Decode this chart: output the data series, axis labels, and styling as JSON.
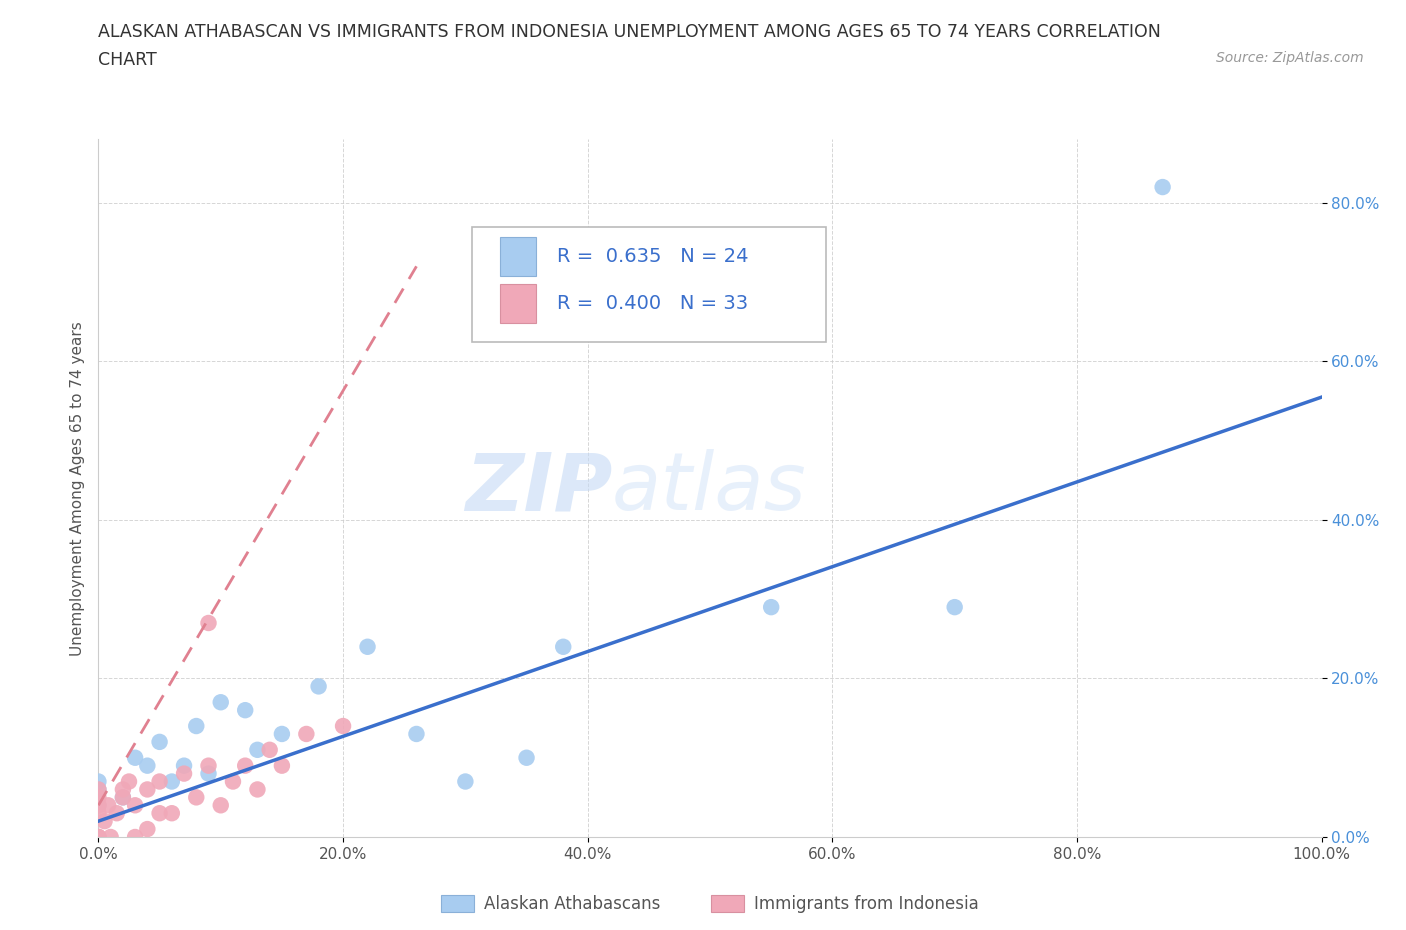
{
  "title_line1": "ALASKAN ATHABASCAN VS IMMIGRANTS FROM INDONESIA UNEMPLOYMENT AMONG AGES 65 TO 74 YEARS CORRELATION",
  "title_line2": "CHART",
  "source_text": "Source: ZipAtlas.com",
  "ylabel": "Unemployment Among Ages 65 to 74 years",
  "xlim": [
    0.0,
    1.0
  ],
  "ylim": [
    0.0,
    0.88
  ],
  "x_ticks": [
    0.0,
    0.2,
    0.4,
    0.6,
    0.8,
    1.0
  ],
  "x_tick_labels": [
    "0.0%",
    "20.0%",
    "40.0%",
    "60.0%",
    "80.0%",
    "100.0%"
  ],
  "y_ticks": [
    0.0,
    0.2,
    0.4,
    0.6,
    0.8
  ],
  "y_tick_labels": [
    "0.0%",
    "20.0%",
    "40.0%",
    "60.0%",
    "80.0%"
  ],
  "legend1_R": "0.635",
  "legend1_N": "24",
  "legend2_R": "0.400",
  "legend2_N": "33",
  "legend_label1": "Alaskan Athabascans",
  "legend_label2": "Immigrants from Indonesia",
  "color_blue": "#a8ccf0",
  "color_pink": "#f0a8b8",
  "line_color_blue": "#3a6fcc",
  "line_color_pink": "#e08090",
  "watermark_zip": "ZIP",
  "watermark_atlas": "atlas",
  "blue_line_x0": 0.0,
  "blue_line_y0": 0.02,
  "blue_line_x1": 1.0,
  "blue_line_y1": 0.555,
  "pink_line_x0": 0.0,
  "pink_line_y0": 0.04,
  "pink_line_x1": 0.26,
  "pink_line_y1": 0.72,
  "athabascan_x": [
    0.0,
    0.0,
    0.0,
    0.02,
    0.03,
    0.04,
    0.05,
    0.06,
    0.07,
    0.08,
    0.09,
    0.1,
    0.12,
    0.13,
    0.15,
    0.18,
    0.22,
    0.26,
    0.3,
    0.35,
    0.38,
    0.55,
    0.7,
    0.87
  ],
  "athabascan_y": [
    0.04,
    0.06,
    0.07,
    0.05,
    0.1,
    0.09,
    0.12,
    0.07,
    0.09,
    0.14,
    0.08,
    0.17,
    0.16,
    0.11,
    0.13,
    0.19,
    0.24,
    0.13,
    0.07,
    0.1,
    0.24,
    0.29,
    0.29,
    0.82
  ],
  "indonesia_x": [
    0.0,
    0.0,
    0.0,
    0.0,
    0.0,
    0.0,
    0.0,
    0.005,
    0.008,
    0.01,
    0.015,
    0.02,
    0.02,
    0.025,
    0.03,
    0.03,
    0.04,
    0.04,
    0.05,
    0.05,
    0.06,
    0.07,
    0.08,
    0.09,
    0.09,
    0.1,
    0.11,
    0.12,
    0.13,
    0.14,
    0.15,
    0.17,
    0.2
  ],
  "indonesia_y": [
    0.0,
    0.0,
    0.0,
    0.03,
    0.04,
    0.05,
    0.06,
    0.02,
    0.04,
    0.0,
    0.03,
    0.05,
    0.06,
    0.07,
    0.0,
    0.04,
    0.01,
    0.06,
    0.03,
    0.07,
    0.03,
    0.08,
    0.05,
    0.09,
    0.27,
    0.04,
    0.07,
    0.09,
    0.06,
    0.11,
    0.09,
    0.13,
    0.14
  ]
}
